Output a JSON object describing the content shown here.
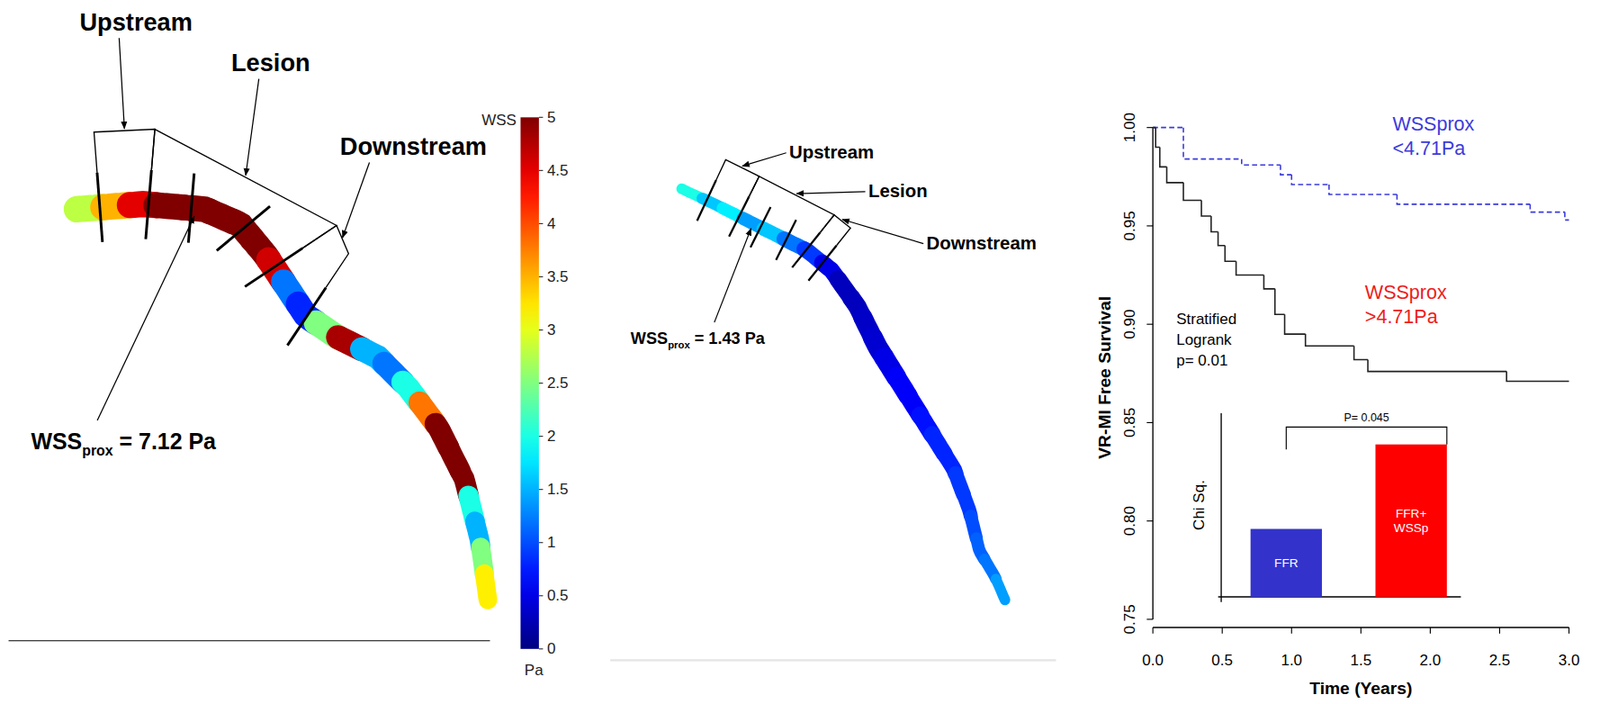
{
  "vessel_panels": [
    {
      "segment_labels": [
        "Upstream",
        "Lesion",
        "Downstream"
      ],
      "wss_prox_label": {
        "prefix": "WSS",
        "subscript": "prox",
        "suffix": " = 7.12 Pa"
      },
      "wss_along_vessel": [
        2.8,
        3.5,
        4.5,
        5,
        5,
        5,
        5,
        5,
        4.6,
        1.2,
        0.8,
        2.5,
        4.8,
        1.5,
        1.2,
        2,
        3.8,
        5,
        5,
        5,
        2,
        1.5,
        2.5,
        3.2
      ]
    },
    {
      "segment_labels": [
        "Upstream",
        "Lesion",
        "Downstream"
      ],
      "wss_prox_label": {
        "prefix": "WSS",
        "subscript": "prox",
        "suffix": " = 1.43 Pa"
      },
      "wss_along_vessel": [
        2,
        1.6,
        1.8,
        1.4,
        1.6,
        1.2,
        0.9,
        0.5,
        0.3,
        0.3,
        0.35,
        0.4,
        0.5,
        0.6,
        0.6,
        0.7,
        0.8,
        0.8,
        0.9,
        0.9,
        1.0,
        1.1,
        1.2,
        1.4
      ]
    }
  ],
  "colorbar": {
    "title": "WSS",
    "unit": "Pa",
    "range": [
      0,
      5
    ],
    "ticks": [
      0,
      0.5,
      1,
      1.5,
      2,
      2.5,
      3,
      3.5,
      4,
      4.5,
      5
    ]
  },
  "chart_data": [
    {
      "type": "line",
      "x_label": "Time (Years)",
      "y_label": "VR-MI Free Survival",
      "xlim": [
        0,
        3
      ],
      "ylim": [
        0.75,
        1.0
      ],
      "xticks": [
        {
          "value": 0,
          "label": "0.0"
        },
        0.5,
        {
          "value": 1,
          "label": "1.0"
        },
        1.5,
        {
          "value": 2,
          "label": "2.0"
        },
        2.5,
        {
          "value": 3,
          "label": "3.0"
        }
      ],
      "yticks": [
        0.75,
        {
          "value": 0.8,
          "label": "0.80"
        },
        0.85,
        {
          "value": 0.9,
          "label": "0.90"
        },
        0.95,
        {
          "value": 1.0,
          "label": "1.00"
        }
      ],
      "series": [
        {
          "color": "#3b3bdb",
          "line_style": "dashed",
          "x": [
            0,
            0.22,
            0.64,
            0.92,
            1.0,
            1.27,
            1.76,
            2.72,
            2.97,
            3.0
          ],
          "values": [
            1.0,
            0.984,
            0.981,
            0.976,
            0.971,
            0.966,
            0.961,
            0.957,
            0.953,
            0.953
          ]
        },
        {
          "color": "#222222",
          "line_style": "solid",
          "x": [
            0,
            0.02,
            0.05,
            0.1,
            0.22,
            0.35,
            0.42,
            0.47,
            0.52,
            0.6,
            0.8,
            0.88,
            0.95,
            1.1,
            1.45,
            1.55,
            2.55,
            3.0
          ],
          "values": [
            1.0,
            0.99,
            0.98,
            0.972,
            0.963,
            0.955,
            0.947,
            0.94,
            0.932,
            0.925,
            0.918,
            0.905,
            0.895,
            0.889,
            0.882,
            0.876,
            0.871,
            0.871
          ]
        }
      ],
      "annotations": [
        {
          "lines": [
            "WSSprox",
            "<4.71Pa"
          ],
          "color": "#3b3bdb"
        },
        {
          "lines": [
            "WSSprox",
            ">4.71Pa"
          ],
          "color": "#ee1c1c"
        },
        {
          "lines": [
            "Stratified",
            "Logrank",
            "p= 0.01"
          ],
          "color": "#000000"
        }
      ]
    },
    {
      "type": "bar",
      "y_label": "Chi Sq.",
      "categories": [
        "FFR",
        "FFR+ WSSp"
      ],
      "values": [
        3.7,
        8.3
      ],
      "colors": [
        "#3333cc",
        "#ff0000"
      ],
      "ylim": [
        0,
        10
      ],
      "tick_labels": false,
      "annotations": [
        {
          "text": "P= 0.045"
        }
      ]
    }
  ]
}
